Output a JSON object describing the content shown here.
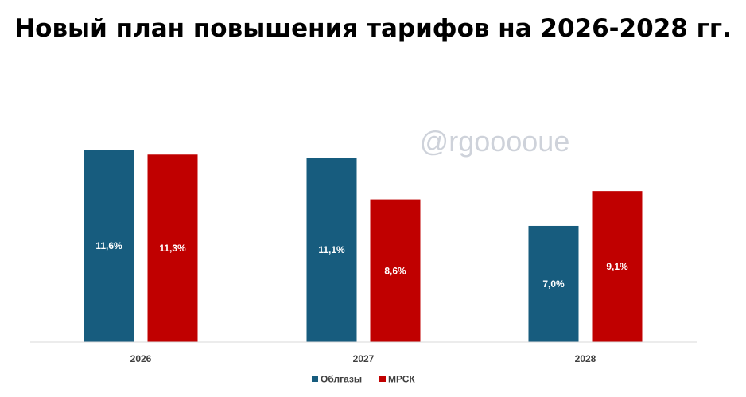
{
  "chart_data": {
    "type": "bar",
    "title": "Новый план повышения тарифов на 2026-2028 гг.",
    "categories": [
      "2026",
      "2027",
      "2028"
    ],
    "series": [
      {
        "name": "Облгазы",
        "color": "#175c7e",
        "values": [
          11.6,
          11.1,
          7.0
        ],
        "labels": [
          "11,6%",
          "11,1%",
          "7,0%"
        ]
      },
      {
        "name": "МРСК",
        "color": "#c00000",
        "values": [
          11.3,
          8.6,
          9.1
        ],
        "labels": [
          "11,3%",
          "8,6%",
          "9,1%"
        ]
      }
    ],
    "ylim": [
      0,
      12
    ],
    "grid": false,
    "legend_position": "bottom",
    "watermark": "@rgooooue",
    "xlabel": "",
    "ylabel": ""
  }
}
